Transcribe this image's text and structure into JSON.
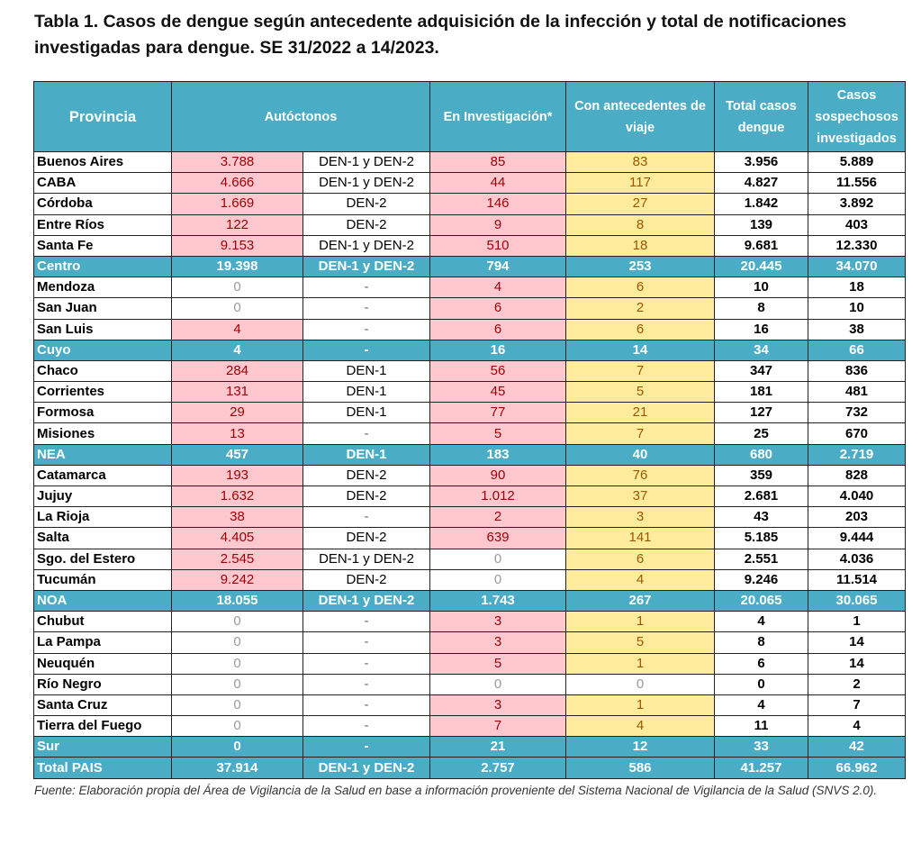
{
  "title": "Tabla 1. Casos de dengue según antecedente adquisición de la infección y total de notificaciones investigadas para dengue. SE 31/2022 a 14/2023.",
  "colors": {
    "header": "#4bacc6",
    "pink_fill": "#ffc7ce",
    "pink_text": "#9c0006",
    "yellow_fill": "#ffeb9c",
    "yellow_text": "#9c5700"
  },
  "headers": [
    "Provincia",
    "Autóctonos",
    "En Investigación*",
    "Con antecedentes de viaje",
    "Total casos dengue",
    "Casos sospechosos investigados"
  ],
  "rows": [
    {
      "type": "province",
      "name": "Buenos Aires",
      "autoctonos": "3.788",
      "serotipo": "DEN-1  y DEN-2",
      "investigacion": "85",
      "viaje": "83",
      "total": "3.956",
      "sospechosos": "5.889"
    },
    {
      "type": "province",
      "name": "CABA",
      "autoctonos": "4.666",
      "serotipo": "DEN-1  y DEN-2",
      "investigacion": "44",
      "viaje": "117",
      "total": "4.827",
      "sospechosos": "11.556"
    },
    {
      "type": "province",
      "name": "Córdoba",
      "autoctonos": "1.669",
      "serotipo": "DEN-2",
      "investigacion": "146",
      "viaje": "27",
      "total": "1.842",
      "sospechosos": "3.892"
    },
    {
      "type": "province",
      "name": "Entre Ríos",
      "autoctonos": "122",
      "serotipo": "DEN-2",
      "investigacion": "9",
      "viaje": "8",
      "total": "139",
      "sospechosos": "403"
    },
    {
      "type": "province",
      "name": "Santa Fe",
      "autoctonos": "9.153",
      "serotipo": "DEN-1 y DEN-2",
      "investigacion": "510",
      "viaje": "18",
      "total": "9.681",
      "sospechosos": "12.330"
    },
    {
      "type": "region",
      "name": "Centro",
      "autoctonos": "19.398",
      "serotipo": "DEN-1 y DEN-2",
      "investigacion": "794",
      "viaje": "253",
      "total": "20.445",
      "sospechosos": "34.070"
    },
    {
      "type": "province",
      "name": "Mendoza",
      "autoctonos": "0",
      "serotipo": "-",
      "investigacion": "4",
      "viaje": "6",
      "total": "10",
      "sospechosos": "18"
    },
    {
      "type": "province",
      "name": "San Juan",
      "autoctonos": "0",
      "serotipo": "-",
      "investigacion": "6",
      "viaje": "2",
      "total": "8",
      "sospechosos": "10"
    },
    {
      "type": "province",
      "name": "San Luis",
      "autoctonos": "4",
      "serotipo": "-",
      "investigacion": "6",
      "viaje": "6",
      "total": "16",
      "sospechosos": "38"
    },
    {
      "type": "region",
      "name": "Cuyo",
      "autoctonos": "4",
      "serotipo": "-",
      "investigacion": "16",
      "viaje": "14",
      "total": "34",
      "sospechosos": "66"
    },
    {
      "type": "province",
      "name": "Chaco",
      "autoctonos": "284",
      "serotipo": "DEN-1",
      "investigacion": "56",
      "viaje": "7",
      "total": "347",
      "sospechosos": "836"
    },
    {
      "type": "province",
      "name": "Corrientes",
      "autoctonos": "131",
      "serotipo": "DEN-1",
      "investigacion": "45",
      "viaje": "5",
      "total": "181",
      "sospechosos": "481"
    },
    {
      "type": "province",
      "name": "Formosa",
      "autoctonos": "29",
      "serotipo": "DEN-1",
      "investigacion": "77",
      "viaje": "21",
      "total": "127",
      "sospechosos": "732"
    },
    {
      "type": "province",
      "name": "Misiones",
      "autoctonos": "13",
      "serotipo": "-",
      "investigacion": "5",
      "viaje": "7",
      "total": "25",
      "sospechosos": "670"
    },
    {
      "type": "region",
      "name": "NEA",
      "autoctonos": "457",
      "serotipo": "DEN-1",
      "investigacion": "183",
      "viaje": "40",
      "total": "680",
      "sospechosos": "2.719"
    },
    {
      "type": "province",
      "name": "Catamarca",
      "autoctonos": "193",
      "serotipo": "DEN-2",
      "investigacion": "90",
      "viaje": "76",
      "total": "359",
      "sospechosos": "828"
    },
    {
      "type": "province",
      "name": "Jujuy",
      "autoctonos": "1.632",
      "serotipo": "DEN-2",
      "investigacion": "1.012",
      "viaje": "37",
      "total": "2.681",
      "sospechosos": "4.040"
    },
    {
      "type": "province",
      "name": "La Rioja",
      "autoctonos": "38",
      "serotipo": "-",
      "investigacion": "2",
      "viaje": "3",
      "total": "43",
      "sospechosos": "203"
    },
    {
      "type": "province",
      "name": "Salta",
      "autoctonos": "4.405",
      "serotipo": "DEN-2",
      "investigacion": "639",
      "viaje": "141",
      "total": "5.185",
      "sospechosos": "9.444"
    },
    {
      "type": "province",
      "name": "Sgo. del Estero",
      "autoctonos": "2.545",
      "serotipo": "DEN-1 y DEN-2",
      "investigacion": "0",
      "viaje": "6",
      "total": "2.551",
      "sospechosos": "4.036"
    },
    {
      "type": "province",
      "name": "Tucumán",
      "autoctonos": "9.242",
      "serotipo": "DEN-2",
      "investigacion": "0",
      "viaje": "4",
      "total": "9.246",
      "sospechosos": "11.514"
    },
    {
      "type": "region",
      "name": "NOA",
      "autoctonos": "18.055",
      "serotipo": "DEN-1 y DEN-2",
      "investigacion": "1.743",
      "viaje": "267",
      "total": "20.065",
      "sospechosos": "30.065"
    },
    {
      "type": "province",
      "name": "Chubut",
      "autoctonos": "0",
      "serotipo": "-",
      "investigacion": "3",
      "viaje": "1",
      "total": "4",
      "sospechosos": "1"
    },
    {
      "type": "province",
      "name": "La Pampa",
      "autoctonos": "0",
      "serotipo": "-",
      "investigacion": "3",
      "viaje": "5",
      "total": "8",
      "sospechosos": "14"
    },
    {
      "type": "province",
      "name": "Neuquén",
      "autoctonos": "0",
      "serotipo": "-",
      "investigacion": "5",
      "viaje": "1",
      "total": "6",
      "sospechosos": "14"
    },
    {
      "type": "province",
      "name": "Río Negro",
      "autoctonos": "0",
      "serotipo": "-",
      "investigacion": "0",
      "viaje": "0",
      "total": "0",
      "sospechosos": "2"
    },
    {
      "type": "province",
      "name": "Santa Cruz",
      "autoctonos": "0",
      "serotipo": "-",
      "investigacion": "3",
      "viaje": "1",
      "total": "4",
      "sospechosos": "7"
    },
    {
      "type": "province",
      "name": "Tierra del Fuego",
      "autoctonos": "0",
      "serotipo": "-",
      "investigacion": "7",
      "viaje": "4",
      "total": "11",
      "sospechosos": "4"
    },
    {
      "type": "region",
      "name": "Sur",
      "autoctonos": "0",
      "serotipo": "-",
      "investigacion": "21",
      "viaje": "12",
      "total": "33",
      "sospechosos": "42"
    },
    {
      "type": "region",
      "name": "Total PAIS",
      "autoctonos": "37.914",
      "serotipo": "DEN-1 y DEN-2",
      "investigacion": "2.757",
      "viaje": "586",
      "total": "41.257",
      "sospechosos": "66.962"
    }
  ],
  "source": "Fuente: Elaboración propia del Área de Vigilancia de la Salud en base a información proveniente del Sistema Nacional de Vigilancia de la Salud (SNVS 2.0)."
}
